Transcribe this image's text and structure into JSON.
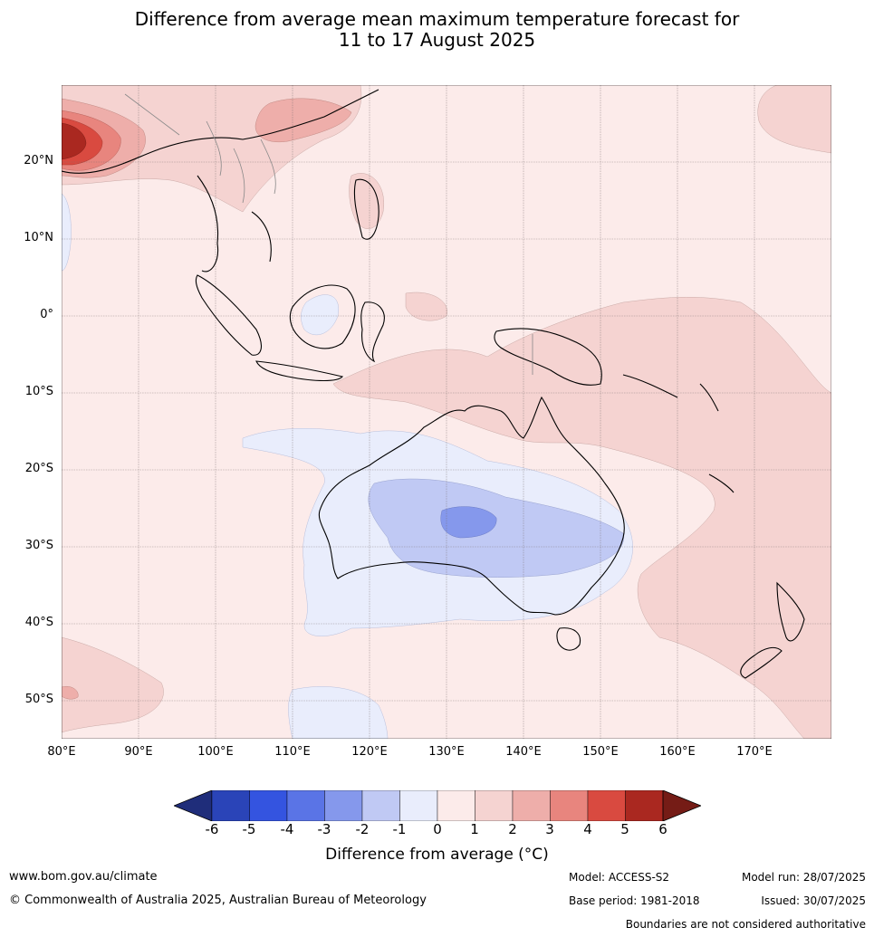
{
  "title_line1": "Difference from average mean maximum temperature forecast for",
  "title_line2": "11 to 17 August 2025",
  "map": {
    "lat_labels": [
      "20°N",
      "10°N",
      "0°",
      "10°S",
      "20°S",
      "30°S",
      "40°S",
      "50°S"
    ],
    "lon_labels": [
      "80°E",
      "90°E",
      "100°E",
      "110°E",
      "120°E",
      "130°E",
      "140°E",
      "150°E",
      "160°E",
      "170°E"
    ],
    "lon_range": [
      80,
      180
    ],
    "lat_range": [
      -55,
      30
    ]
  },
  "colorbar": {
    "title": "Difference from average (°C)",
    "ticks": [
      "-6",
      "-5",
      "-4",
      "-3",
      "-2",
      "-1",
      "0",
      "1",
      "2",
      "3",
      "4",
      "5",
      "6"
    ],
    "colors": [
      "#1f2d7a",
      "#2a44b8",
      "#3454e0",
      "#5a74e6",
      "#8598ec",
      "#c0c9f4",
      "#e9edfc",
      "#fcebea",
      "#f5d3d1",
      "#eeaeaa",
      "#e8857e",
      "#d94a40",
      "#aa2820",
      "#751c16"
    ]
  },
  "footer": {
    "website": "www.bom.gov.au/climate",
    "copyright": "© Commonwealth of Australia 2025, Australian Bureau of Meteorology",
    "model": "Model: ACCESS-S2",
    "base_period": "Base period: 1981-2018",
    "model_run": "Model run: 28/07/2025",
    "issued": "Issued: 30/07/2025",
    "disclaimer": "Boundaries are not considered authoritative"
  }
}
